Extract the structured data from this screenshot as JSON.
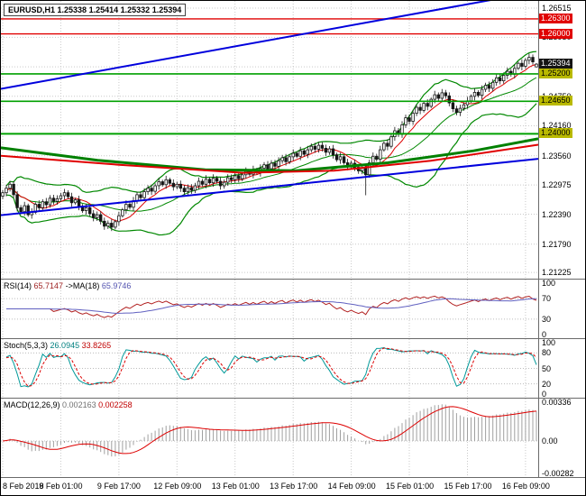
{
  "symbol_header": {
    "symbol": "EURUSD,H1",
    "open": "1.25338",
    "high": "1.25414",
    "low": "1.25332",
    "close": "1.25394"
  },
  "chart_data": {
    "type": "candlestick",
    "symbol": "EURUSD",
    "timeframe": "H1",
    "price_axis_range": {
      "max": 1.2666,
      "min": 1.211
    },
    "closes": [
      1.2282,
      1.2291,
      1.2299,
      1.2278,
      1.2252,
      1.2244,
      1.2256,
      1.2238,
      1.2243,
      1.2259,
      1.2252,
      1.2264,
      1.2258,
      1.2271,
      1.2265,
      1.227,
      1.2276,
      1.2282,
      1.2274,
      1.2262,
      1.2268,
      1.2255,
      1.2246,
      1.2252,
      1.224,
      1.2232,
      1.2238,
      1.2225,
      1.2215,
      1.2221,
      1.2213,
      1.2224,
      1.2236,
      1.2248,
      1.2259,
      1.2253,
      1.2266,
      1.2278,
      1.2272,
      1.2284,
      1.2291,
      1.2285,
      1.2296,
      1.2304,
      1.2298,
      1.2308,
      1.2301,
      1.2294,
      1.2299,
      1.2291,
      1.2284,
      1.2292,
      1.2287,
      1.2296,
      1.2305,
      1.2299,
      1.2309,
      1.2302,
      1.2311,
      1.2305,
      1.2296,
      1.2303,
      1.2312,
      1.2308,
      1.2316,
      1.231,
      1.2318,
      1.2325,
      1.2319,
      1.2328,
      1.2322,
      1.2331,
      1.2338,
      1.233,
      1.2341,
      1.2335,
      1.2346,
      1.2352,
      1.2344,
      1.2354,
      1.2361,
      1.2355,
      1.2366,
      1.2359,
      1.2368,
      1.2375,
      1.2369,
      1.2377,
      1.2371,
      1.2363,
      1.237,
      1.2358,
      1.2348,
      1.2354,
      1.2342,
      1.2335,
      1.2341,
      1.2333,
      1.2326,
      1.2332,
      1.2318,
      1.2342,
      1.2355,
      1.2349,
      1.2368,
      1.2381,
      1.2375,
      1.2394,
      1.2406,
      1.2399,
      1.2418,
      1.2432,
      1.2425,
      1.2441,
      1.2453,
      1.2447,
      1.2461,
      1.2455,
      1.2469,
      1.2478,
      1.2471,
      1.2482,
      1.2476,
      1.2462,
      1.245,
      1.2443,
      1.2451,
      1.2458,
      1.2466,
      1.2475,
      1.2483,
      1.2477,
      1.2489,
      1.2497,
      1.2491,
      1.2503,
      1.2512,
      1.2506,
      1.2517,
      1.2525,
      1.2519,
      1.2531,
      1.2541,
      1.2535,
      1.2547,
      1.2553,
      1.2544,
      1.25394
    ],
    "first_open": 1.2275,
    "last_candle": {
      "open": 1.25338,
      "high": 1.25414,
      "low": 1.25332,
      "close": 1.25394
    },
    "spike_candle": {
      "index": 100,
      "low": 1.2277
    },
    "overlays": {
      "bollinger": {
        "period": 20,
        "deviation": 2,
        "color": "#008800"
      },
      "ma_fast": {
        "period": 8,
        "color": "#dd0000"
      },
      "long_green": {
        "color": "#008000",
        "width": 3,
        "points": [
          [
            0,
            1.2372
          ],
          [
            0.18,
            1.2347
          ],
          [
            0.38,
            1.2328
          ],
          [
            0.55,
            1.2326
          ],
          [
            0.72,
            1.2342
          ],
          [
            0.88,
            1.2366
          ],
          [
            1,
            1.239
          ]
        ]
      },
      "long_red": {
        "color": "#e00000",
        "width": 2,
        "points": [
          [
            0,
            1.2356
          ],
          [
            0.22,
            1.2338
          ],
          [
            0.45,
            1.2322
          ],
          [
            0.62,
            1.2326
          ],
          [
            0.8,
            1.2346
          ],
          [
            1,
            1.2378
          ]
        ]
      },
      "trend_blue_upper": {
        "color": "#0000dd",
        "width": 2,
        "from": [
          0,
          1.249
        ],
        "to": [
          1,
          1.2685
        ]
      },
      "trend_blue_lower": {
        "color": "#0000dd",
        "width": 2,
        "from": [
          0,
          1.2237
        ],
        "to": [
          1,
          1.235
        ]
      },
      "hlines": [
        {
          "v": 1.263,
          "color": "#e00000",
          "w": 1.4
        },
        {
          "v": 1.26,
          "color": "#e00000",
          "w": 1.4
        },
        {
          "v": 1.252,
          "color": "#00a000",
          "w": 1.6
        },
        {
          "v": 1.2465,
          "color": "#00a000",
          "w": 1.6
        },
        {
          "v": 1.24,
          "color": "#00a000",
          "w": 2
        }
      ]
    },
    "price_axis": {
      "gridlines": [
        {
          "v": 1.26515,
          "t": "1.26515"
        },
        {
          "v": 1.2593,
          "t": "1.25930"
        },
        {
          "v": 1.2534,
          "t": "1.25340"
        },
        {
          "v": 1.2475,
          "t": "1.24750"
        },
        {
          "v": 1.2416,
          "t": "1.24160"
        },
        {
          "v": 1.2356,
          "t": "1.23560"
        },
        {
          "v": 1.22975,
          "t": "1.22975"
        },
        {
          "v": 1.2239,
          "t": "1.22390"
        },
        {
          "v": 1.2179,
          "t": "1.21790"
        },
        {
          "v": 1.21225,
          "t": "1.21225"
        }
      ],
      "badges": [
        {
          "text": "1.26300",
          "v": 1.263,
          "bg": "#e00000",
          "color": "#ffffff"
        },
        {
          "text": "1.26000",
          "v": 1.26,
          "bg": "#e00000",
          "color": "#ffffff"
        },
        {
          "text": "1.25394",
          "v": 1.25394,
          "bg": "#141414",
          "color": "#ffffff"
        },
        {
          "text": "1.25200",
          "v": 1.252,
          "bg": "#b9b900",
          "color": "#000000"
        },
        {
          "text": "1.24650",
          "v": 1.2465,
          "bg": "#b9b900",
          "color": "#000000"
        },
        {
          "text": "1.24000",
          "v": 1.24,
          "bg": "#b9b900",
          "color": "#000000"
        }
      ]
    },
    "time_axis": {
      "labels": [
        "8 Feb 2018",
        "9 Feb 01:00",
        "9 Feb 17:00",
        "12 Feb 09:00",
        "13 Feb 01:00",
        "13 Feb 17:00",
        "14 Feb 09:00",
        "15 Feb 01:00",
        "15 Feb 17:00",
        "16 Feb 09:00"
      ],
      "indices": [
        0,
        16,
        32,
        48,
        64,
        80,
        96,
        112,
        128,
        144
      ]
    },
    "indicators": [
      {
        "type": "rsi",
        "params": "RSI(14)",
        "value": "65.7147",
        "ma_label": "->MA(18)",
        "ma_value": "65.9746",
        "period": 14,
        "ma_period": 18,
        "levels": [
          {
            "v": 100,
            "t": "100"
          },
          {
            "v": 70,
            "t": "70",
            "line": true
          },
          {
            "v": 30,
            "t": "30",
            "line": true
          },
          {
            "v": 0,
            "t": "0"
          }
        ],
        "color": "#b22222",
        "ma_color": "#6060c0"
      },
      {
        "type": "stochastic",
        "params": "Stoch(5,3,3)",
        "value": "26.0945",
        "signal_value": "33.8265",
        "k": 5,
        "d": 3,
        "slowing": 3,
        "levels": [
          {
            "v": 100,
            "t": "100"
          },
          {
            "v": 80,
            "t": "80",
            "line": true
          },
          {
            "v": 50,
            "t": "50",
            "line": true
          },
          {
            "v": 20,
            "t": "20",
            "line": true
          },
          {
            "v": 0,
            "t": "0"
          }
        ],
        "color": "#009999",
        "signal_color": "#dd0000"
      },
      {
        "type": "macd",
        "params": "MACD(12,26,9)",
        "value": "0.002163",
        "signal_value": "0.002258",
        "fast": 12,
        "slow": 26,
        "signal": 9,
        "levels": [
          {
            "v": 0.00336,
            "t": "0.00336"
          },
          {
            "v": 0,
            "t": "0.00",
            "line": true
          },
          {
            "v": -0.00282,
            "t": "-0.00282"
          }
        ],
        "color": "#a0a0a0",
        "signal_color": "#dd0000"
      }
    ]
  }
}
